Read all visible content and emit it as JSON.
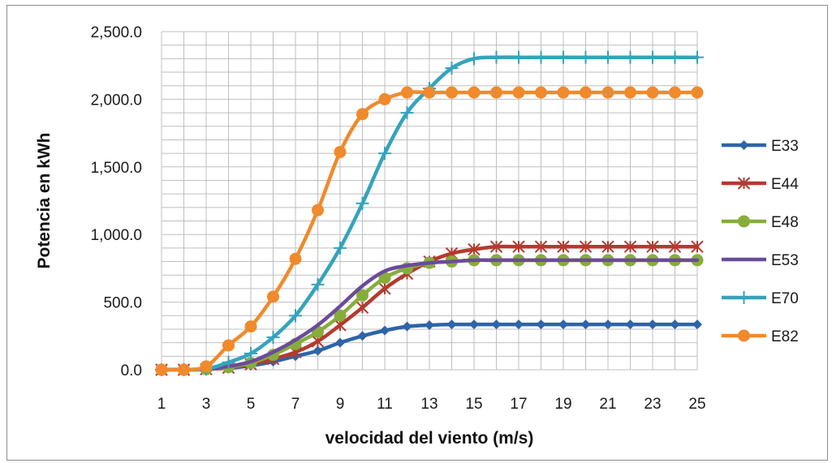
{
  "chart_data": {
    "type": "line",
    "title": "",
    "xlabel": "velocidad del viento (m/s)",
    "ylabel": "Potencia en kWh",
    "x": [
      1,
      2,
      3,
      4,
      5,
      6,
      7,
      8,
      9,
      10,
      11,
      12,
      13,
      14,
      15,
      16,
      17,
      18,
      19,
      20,
      21,
      22,
      23,
      24,
      25
    ],
    "x_tick_labels": [
      "1",
      "3",
      "5",
      "7",
      "9",
      "11",
      "13",
      "15",
      "17",
      "19",
      "21",
      "23",
      "25"
    ],
    "ylim": [
      0,
      2500
    ],
    "y_ticks": [
      0,
      500,
      1000,
      1500,
      2000,
      2500
    ],
    "y_tick_labels": [
      "0.0",
      "500.0",
      "1,000.0",
      "1,500.0",
      "2,000.0",
      "2,500.0"
    ],
    "grid": true,
    "legend_position": "right",
    "series": [
      {
        "name": "E33",
        "color": "#2e64a8",
        "marker": "diamond",
        "values": [
          0,
          0,
          5,
          13,
          30,
          60,
          100,
          140,
          200,
          250,
          290,
          320,
          330,
          335,
          335,
          335,
          335,
          335,
          335,
          335,
          335,
          335,
          335,
          335,
          335
        ]
      },
      {
        "name": "E44",
        "color": "#b33a2f",
        "marker": "star",
        "values": [
          0,
          0,
          4,
          15,
          40,
          80,
          130,
          210,
          330,
          460,
          600,
          710,
          800,
          860,
          890,
          910,
          910,
          910,
          910,
          910,
          910,
          910,
          910,
          910,
          910
        ]
      },
      {
        "name": "E48",
        "color": "#86ad3c",
        "marker": "circle",
        "values": [
          0,
          0,
          5,
          20,
          50,
          110,
          190,
          280,
          400,
          550,
          680,
          750,
          790,
          800,
          810,
          810,
          810,
          810,
          810,
          810,
          810,
          810,
          810,
          810,
          810
        ]
      },
      {
        "name": "E53",
        "color": "#6a4b9a",
        "marker": "none",
        "values": [
          0,
          0,
          5,
          25,
          60,
          130,
          220,
          330,
          470,
          620,
          730,
          770,
          790,
          800,
          810,
          810,
          810,
          810,
          810,
          810,
          810,
          810,
          810,
          810,
          810
        ]
      },
      {
        "name": "E70",
        "color": "#35a3bd",
        "marker": "plus",
        "values": [
          0,
          0,
          5,
          55,
          120,
          240,
          400,
          630,
          900,
          1230,
          1600,
          1900,
          2080,
          2230,
          2300,
          2310,
          2310,
          2310,
          2310,
          2310,
          2310,
          2310,
          2310,
          2310,
          2310
        ]
      },
      {
        "name": "E82",
        "color": "#f08a2c",
        "marker": "circle",
        "values": [
          0,
          0,
          25,
          180,
          320,
          540,
          820,
          1180,
          1610,
          1890,
          2000,
          2050,
          2050,
          2050,
          2050,
          2050,
          2050,
          2050,
          2050,
          2050,
          2050,
          2050,
          2050,
          2050,
          2050
        ]
      }
    ]
  }
}
